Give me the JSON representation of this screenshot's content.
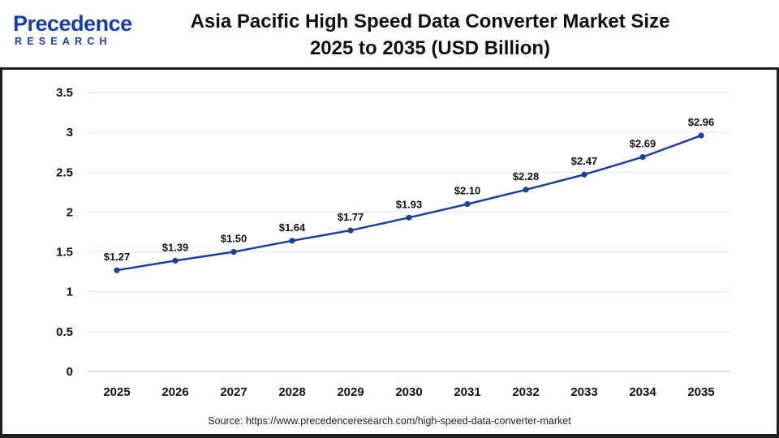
{
  "brand": {
    "name": "Precedence",
    "sub": "RESEARCH"
  },
  "source": "Source: https://www.precedenceresearch.com/high-speed-data-converter-market",
  "chart_data": {
    "type": "line",
    "title_line1": "Asia Pacific High Speed Data Converter Market Size",
    "title_line2": "2025 to 2035 (USD Billion)",
    "categories": [
      "2025",
      "2026",
      "2027",
      "2028",
      "2029",
      "2030",
      "2031",
      "2032",
      "2033",
      "2034",
      "2035"
    ],
    "values": [
      1.27,
      1.39,
      1.5,
      1.64,
      1.77,
      1.93,
      2.1,
      2.28,
      2.47,
      2.69,
      2.96
    ],
    "data_labels": [
      "$1.27",
      "$1.39",
      "$1.50",
      "$1.64",
      "$1.77",
      "$1.93",
      "$2.10",
      "$2.28",
      "$2.47",
      "$2.69",
      "$2.96"
    ],
    "yticks": [
      "0",
      "0.5",
      "1",
      "1.5",
      "2",
      "2.5",
      "3",
      "3.5"
    ],
    "ylim": [
      0,
      3.5
    ],
    "grid": true,
    "line_color": "#1f3f8f"
  }
}
